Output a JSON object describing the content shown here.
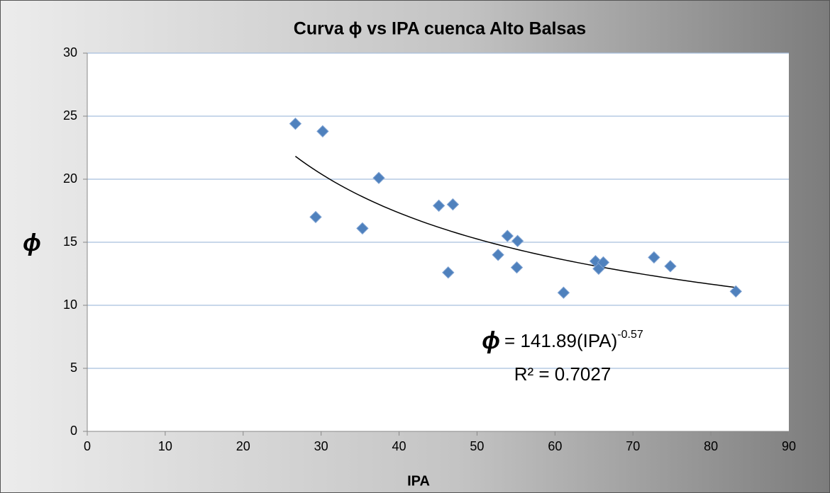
{
  "chart_data": {
    "type": "scatter",
    "title": "Curva ϕ vs IPA cuenca Alto Balsas",
    "xlabel": "IPA",
    "ylabel": "ϕ",
    "x": [
      26.7,
      30.2,
      29.3,
      35.3,
      37.4,
      45.1,
      46.9,
      46.3,
      52.7,
      53.9,
      55.2,
      55.1,
      61.1,
      65.2,
      65.6,
      66.2,
      72.7,
      74.8,
      83.2
    ],
    "series": [
      {
        "color": "#4f81bd",
        "values": [
          24.4,
          23.8,
          17.0,
          16.1,
          20.1,
          17.9,
          18.0,
          12.6,
          14.0,
          15.5,
          15.1,
          13.0,
          11.0,
          13.5,
          12.9,
          13.4,
          13.8,
          13.1,
          11.1
        ]
      }
    ],
    "xlim": [
      0,
      90
    ],
    "xticks": [
      0,
      10,
      20,
      30,
      40,
      50,
      60,
      70,
      80,
      90
    ],
    "ylim": [
      0,
      30
    ],
    "yticks": [
      0,
      5,
      10,
      15,
      20,
      25,
      30
    ],
    "grid": true,
    "trendline": {
      "lhs": "ϕ",
      "eq": "= ",
      "a": 141.89,
      "base": "(IPA)",
      "b": -0.57,
      "r2_label": "R² = 0.7027",
      "color": "#000000"
    }
  }
}
